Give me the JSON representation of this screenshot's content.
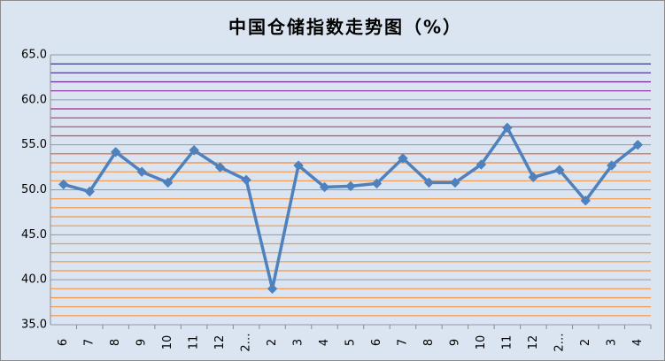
{
  "chart_data": {
    "type": "line",
    "title": "中国仓储指数走势图（%）",
    "categories": [
      "6",
      "7",
      "8",
      "9",
      "10",
      "11",
      "12",
      "2…",
      "2",
      "3",
      "4",
      "5",
      "6",
      "7",
      "8",
      "9",
      "10",
      "11",
      "12",
      "2…",
      "2",
      "3",
      "4"
    ],
    "series": [
      {
        "name": "中国仓储指数",
        "color": "#4f81bd",
        "values": [
          50.6,
          49.8,
          54.2,
          52.0,
          50.8,
          54.4,
          52.5,
          51.1,
          39.0,
          52.7,
          50.3,
          50.4,
          50.7,
          53.5,
          50.8,
          50.8,
          52.8,
          56.9,
          51.4,
          52.2,
          48.8,
          52.7,
          55.0
        ]
      }
    ],
    "ylim": [
      35,
      65
    ],
    "yticks": [
      {
        "value": 35,
        "label": "35.0"
      },
      {
        "value": 40,
        "label": "40.0"
      },
      {
        "value": 45,
        "label": "45.0"
      },
      {
        "value": 50,
        "label": "50.0"
      },
      {
        "value": 55,
        "label": "55.0"
      },
      {
        "value": 60,
        "label": "60.0"
      },
      {
        "value": 65,
        "label": "65.0"
      }
    ],
    "minor_yticks": [
      36,
      37,
      38,
      39,
      41,
      42,
      43,
      44,
      46,
      47,
      48,
      49,
      51,
      52,
      53,
      54,
      56,
      57,
      58,
      59,
      61,
      62,
      63,
      64
    ],
    "minor_grid_colors": [
      "#f79646",
      "#f79646",
      "#f79646",
      "#f79646",
      "#f79646",
      "#f79646",
      "#f79646",
      "#f79646",
      "#f79646",
      "#f79646",
      "#f79646",
      "#f79646",
      "#f79646",
      "#f79646",
      "#f58a40",
      "#e0603a",
      "#d04a48",
      "#c83c6a",
      "#b83080",
      "#a42890",
      "#8a2a98",
      "#6a2898",
      "#3a2a90",
      "#202878"
    ],
    "grid": true,
    "grid_color": "#8a9aad"
  }
}
